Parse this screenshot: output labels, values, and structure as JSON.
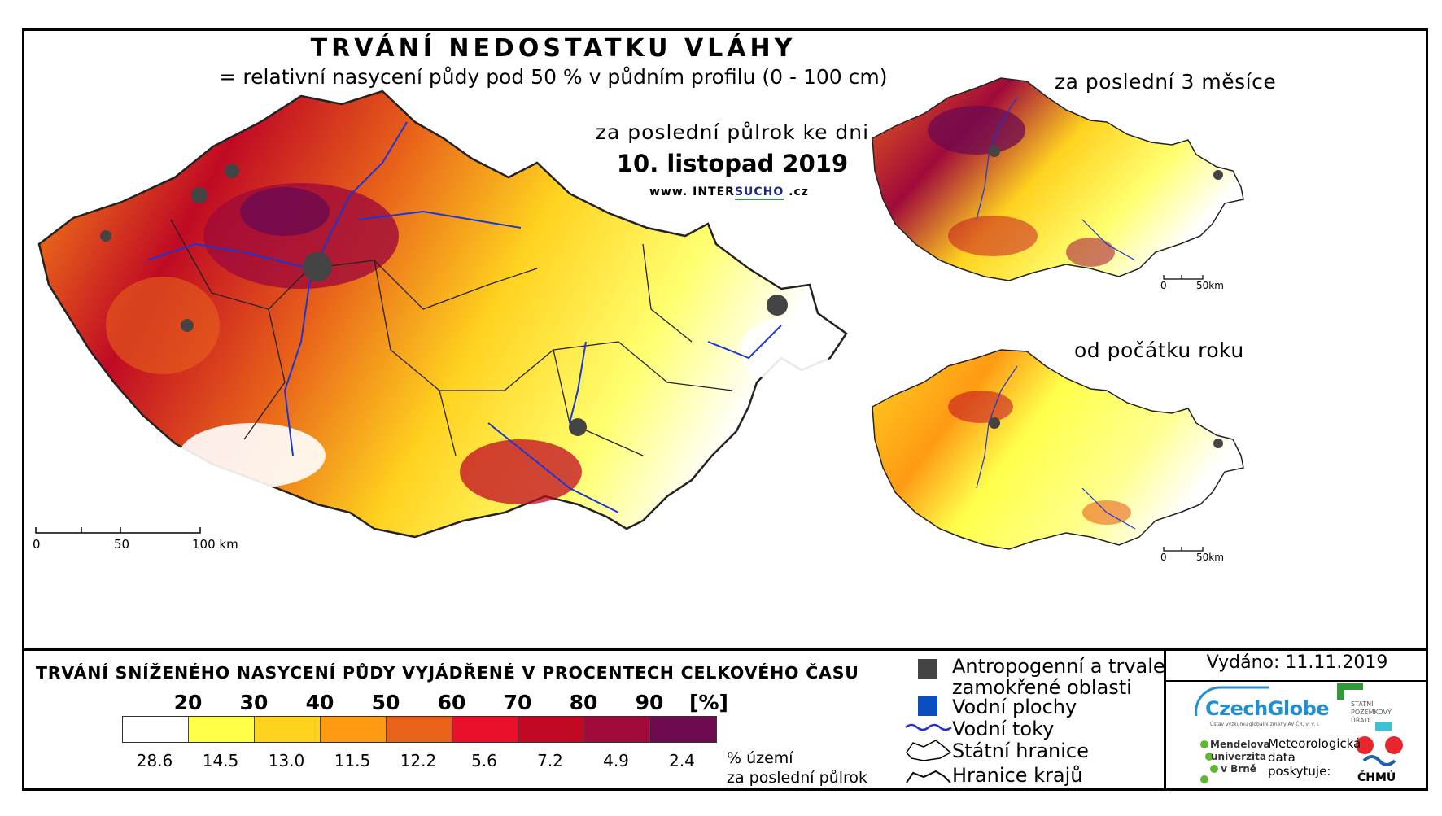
{
  "title": "TRVÁNÍ NEDOSTATKU VLÁHY",
  "subtitle": "= relativní nasycení půdy pod 50 % v půdním profilu (0 - 100 cm)",
  "main_map": {
    "period_label": "za poslední půlrok ke dni",
    "date_label": "10. listopad 2019",
    "web": {
      "prefix": "www.",
      "inter": "INTER",
      "sucho": "SUCHO",
      "suffix": ".cz"
    },
    "scale": {
      "start": "0",
      "mid": "50",
      "end": "100 km"
    }
  },
  "inset_3months": {
    "title": "za poslední 3 měsíce",
    "scale": {
      "start": "0",
      "end": "50km"
    }
  },
  "inset_year": {
    "title": "od počátku roku",
    "scale": {
      "start": "0",
      "end": "50km"
    }
  },
  "legend": {
    "title": "TRVÁNÍ SNÍŽENÉHO NASYCENÍ PŮDY VYJÁDŘENÉ V PROCENTECH CELKOVÉHO ČASU",
    "ticks": [
      "20",
      "30",
      "40",
      "50",
      "60",
      "70",
      "80",
      "90"
    ],
    "unit": "[%]",
    "classes": [
      {
        "color": "#ffffff",
        "share": "28.6"
      },
      {
        "color": "#ffff4a",
        "share": "14.5"
      },
      {
        "color": "#ffd21f",
        "share": "13.0"
      },
      {
        "color": "#ff9a14",
        "share": "11.5"
      },
      {
        "color": "#e8621a",
        "share": "12.2"
      },
      {
        "color": "#e8102a",
        "share": "5.6"
      },
      {
        "color": "#c00a24",
        "share": "7.2"
      },
      {
        "color": "#a00a3a",
        "share": "4.9"
      },
      {
        "color": "#6e0a50",
        "share": "2.4"
      }
    ],
    "share_note_line1": "% území",
    "share_note_line2": "za poslední půlrok"
  },
  "symbols": {
    "anthropogenic_line1": "Antropogenní a trvale",
    "anthropogenic_line2": "zamokřené oblasti",
    "water_bodies": "Vodní plochy",
    "rivers": "Vodní toky",
    "state_border": "Státní hranice",
    "region_border": "Hranice krajů",
    "colors": {
      "anthropogenic": "#444444",
      "water": "#0a4ec0",
      "river": "#2030d0"
    }
  },
  "issued": "Vydáno: 11.11.2019",
  "logos": {
    "czechglobe": "CzechGlobe",
    "czechglobe_sub": "Ústav výzkumu globální změny AV ČR, v. v. i.",
    "spu": "STÁTNÍ POZEMKOVÝ ÚŘAD",
    "mendel_line1": "Mendelova",
    "mendel_line2": "univerzita",
    "mendel_line3": "v Brně",
    "meteo_line1": "Meteorologická",
    "meteo_line2": "data",
    "meteo_line3": "poskytuje:",
    "chmu": "ČHMÚ"
  }
}
